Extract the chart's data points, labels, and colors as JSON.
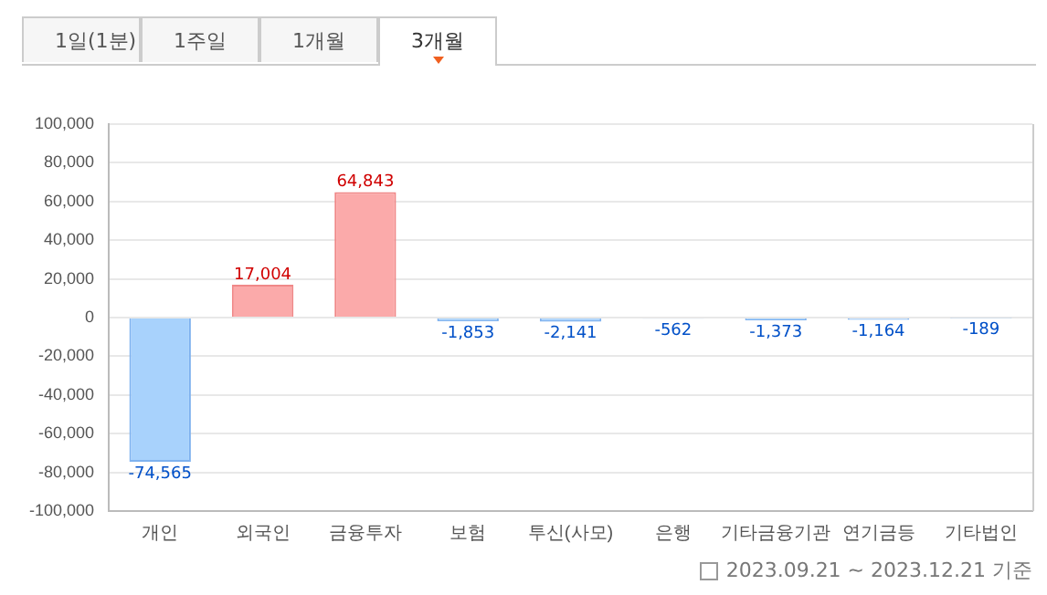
{
  "chart_data": {
    "type": "bar",
    "categories": [
      "개인",
      "외국인",
      "금융투자",
      "보험",
      "투신(사모)",
      "은행",
      "기타금융기관",
      "연기금등",
      "기타법인"
    ],
    "values": [
      -74565,
      17004,
      64843,
      -1853,
      -2141,
      -562,
      -1373,
      -1164,
      -189
    ],
    "colors": [
      "#a8d2fc",
      "#fbaaaa",
      "#fbaaaa",
      "#a8d2fc",
      "#a8d2fc",
      "#a8d2fc",
      "#a8d2fc",
      "#a8d2fc",
      "#a8d2fc"
    ],
    "ylim": [
      -100000,
      100000
    ],
    "yticks": [
      {
        "value": -100000,
        "label": "-100,000"
      },
      {
        "value": -80000,
        "label": "-80,000"
      },
      {
        "value": -60000,
        "label": "-60,000"
      },
      {
        "value": -40000,
        "label": "-40,000"
      },
      {
        "value": -20000,
        "label": "-20,000"
      },
      0,
      {
        "value": 20000,
        "label": "20,000"
      },
      {
        "value": 40000,
        "label": "40,000"
      },
      {
        "value": 60000,
        "label": "60,000"
      },
      {
        "value": 80000,
        "label": "80,000"
      },
      {
        "value": 100000,
        "label": "100,000"
      }
    ],
    "grid": "y",
    "value_labels": [
      "-74,565",
      "17,004",
      "64,843",
      "-1,853",
      "-2,141",
      "-562",
      "-1,373",
      "-1,164",
      "-189"
    ],
    "annotations": [
      "1일(1분)",
      "1주일",
      "1개월",
      "3개월",
      "2023.09.21 ~ 2023.12.21 기준"
    ]
  }
}
